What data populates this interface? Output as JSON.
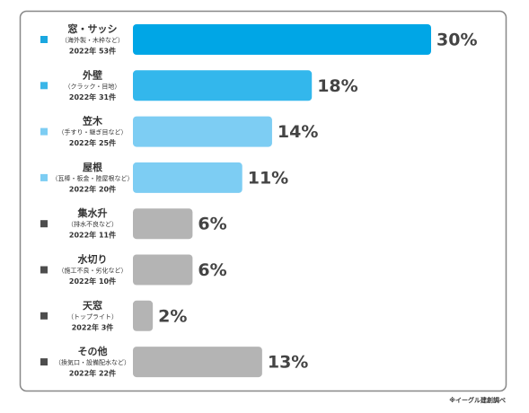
{
  "chart_data": {
    "type": "bar",
    "orientation": "horizontal",
    "categories": [
      "窓・サッシ",
      "外壁",
      "笠木",
      "屋根",
      "集水升",
      "水切り",
      "天窓",
      "その他"
    ],
    "category_notes": [
      "（海外製・木枠など）",
      "（クラック・目地）",
      "（手すり・継ぎ目など）",
      "（瓦棒・板金・陸屋根など）",
      "（排水不良など）",
      "（施工不良・劣化など）",
      "（トップライト）",
      "（換気口・設備配水など）"
    ],
    "category_counts": [
      "2022年 53件",
      "2022年 31件",
      "2022年 25件",
      "2022年 20件",
      "2022年 11件",
      "2022年 10件",
      "2022年 3件",
      "2022年 22件"
    ],
    "values": [
      30,
      18,
      14,
      11,
      6,
      6,
      2,
      13
    ],
    "value_labels": [
      "30%",
      "18%",
      "14%",
      "11%",
      "6%",
      "6%",
      "2%",
      "13%"
    ],
    "colors": [
      "#00a6e6",
      "#33b7ec",
      "#7dcdf3",
      "#7dcdf3",
      "#b4b4b4",
      "#b4b4b4",
      "#b4b4b4",
      "#b4b4b4"
    ],
    "marker_colors": [
      "#1aa7e0",
      "#3ab6e8",
      "#7dcdf3",
      "#7dcdf3",
      "#4d4d4d",
      "#4d4d4d",
      "#4d4d4d",
      "#4d4d4d"
    ],
    "source": "※イーグル建創調べ"
  }
}
